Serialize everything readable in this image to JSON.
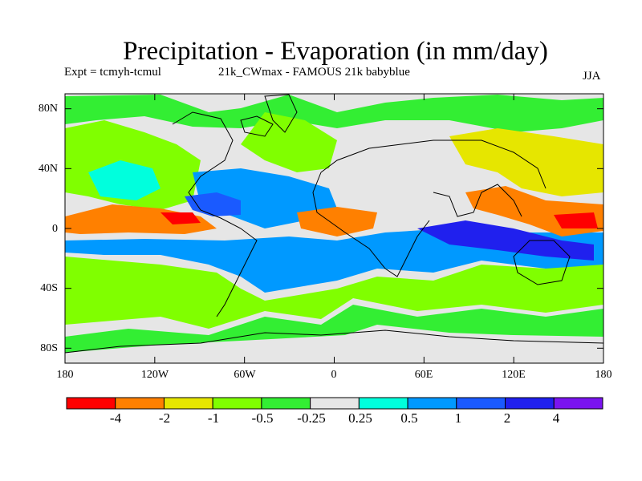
{
  "title": "Precipitation - Evaporation (in mm/day)",
  "experiment": "Expt = tcmyh-tcmul",
  "subtitle": "21k_CWmax - FAMOUS 21k babyblue",
  "season": "JJA",
  "map_data": {
    "variable": "Precipitation minus Evaporation difference",
    "units": "mm/day",
    "lon_range": [
      -180,
      180
    ],
    "lat_range": [
      -90,
      90
    ],
    "ylabels": [
      "80N",
      "40N",
      "0",
      "40S",
      "80S"
    ],
    "xlabels": [
      "180",
      "120W",
      "60W",
      "0",
      "60E",
      "120E",
      "180"
    ],
    "regions": [
      {
        "name": "background",
        "category": 5
      },
      {
        "name": "north-pacific-green",
        "category": 3
      },
      {
        "name": "north-pacific-blue",
        "category": 6
      },
      {
        "name": "east-pacific-orange",
        "category": 1
      },
      {
        "name": "east-pacific-red",
        "category": 0
      },
      {
        "name": "itcz-central-america-blue",
        "category": 8
      },
      {
        "name": "tropical-atlantic-blue",
        "category": 7
      },
      {
        "name": "sahel-orange",
        "category": 1
      },
      {
        "name": "indian-ocean-blue",
        "category": 7
      },
      {
        "name": "indian-ocean-darkblue",
        "category": 9
      },
      {
        "name": "west-pacific-orange",
        "category": 1
      },
      {
        "name": "west-pacific-red",
        "category": 0
      },
      {
        "name": "southern-ocean-blue",
        "category": 7
      },
      {
        "name": "south-pacific-green",
        "category": 3
      },
      {
        "name": "high-latitude-green",
        "category": 4
      }
    ]
  },
  "colorbar": {
    "colors": [
      "#ff0000",
      "#ff8000",
      "#e6e600",
      "#80ff00",
      "#33ee33",
      "#e6e6e6",
      "#00ffdd",
      "#0099ff",
      "#1a5aff",
      "#2020ee",
      "#7a14f0"
    ],
    "labels": [
      "-4",
      "-2",
      "-1",
      "-0.5",
      "-0.25",
      "0.25",
      "0.5",
      "1",
      "2",
      "4"
    ]
  }
}
